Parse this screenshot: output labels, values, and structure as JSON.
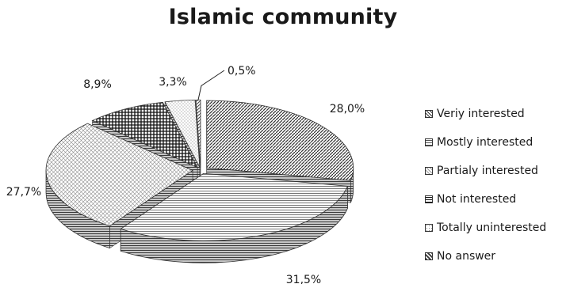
{
  "chart_data": {
    "type": "pie",
    "title": "Islamic community",
    "categories": [
      "Veriy interested",
      "Mostly interested",
      "Partialy interested",
      "Not interested",
      "Totally uninterested",
      "No answer"
    ],
    "values": [
      28.0,
      31.5,
      27.7,
      8.9,
      3.3,
      0.5
    ],
    "data_labels": [
      "28,0%",
      "31,5%",
      "27,7%",
      "8,9%",
      "3,3%",
      "0,5%"
    ],
    "exploded": true,
    "style": "3d",
    "legend_position": "right",
    "colors": [
      "#5a5a5a",
      "#bdbdbd",
      "#d6d6d6",
      "#2e2e2e",
      "#e3e3e3",
      "#7a7a7a"
    ]
  }
}
